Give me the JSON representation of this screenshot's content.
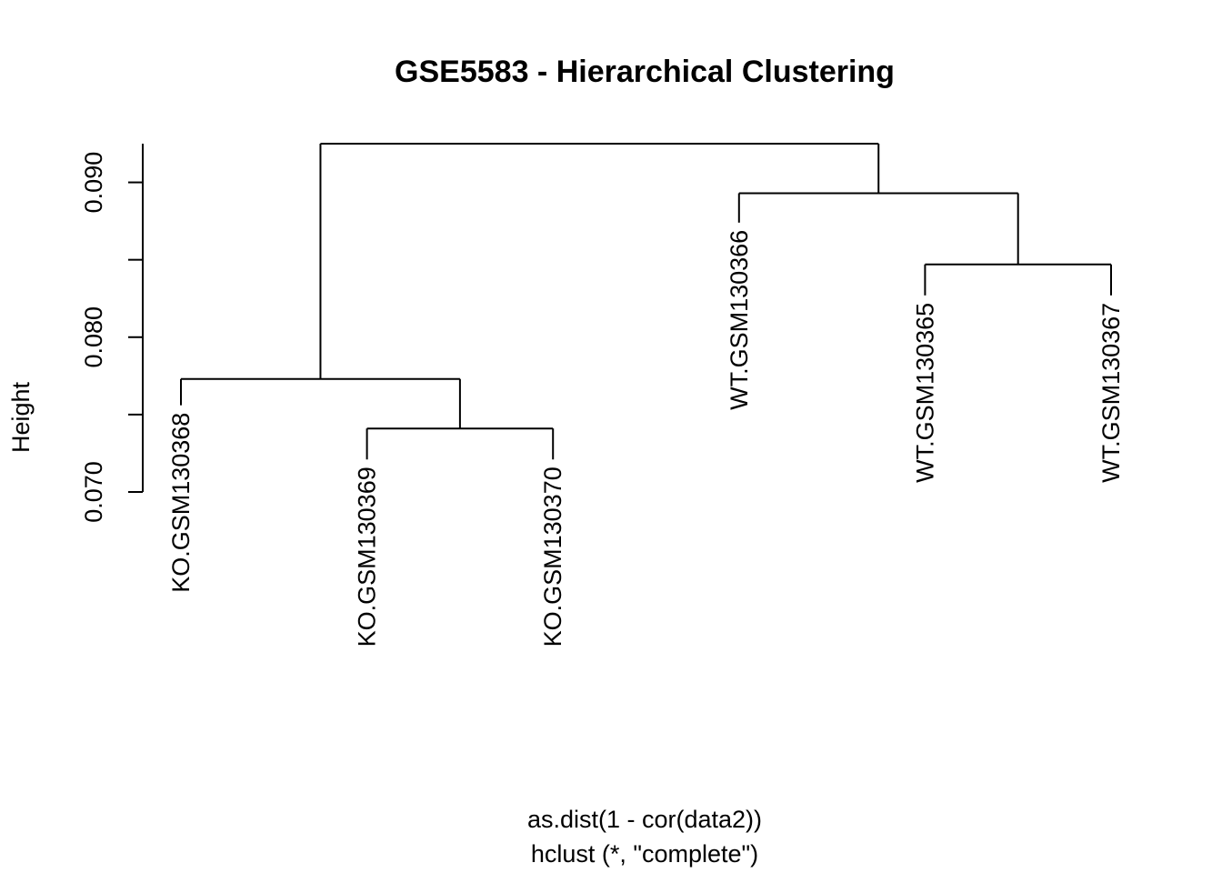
{
  "chart_data": {
    "type": "dendrogram",
    "title": "GSE5583 - Hierarchical Clustering",
    "ylabel": "Height",
    "xlabel_lines": [
      "as.dist(1 - cor(data2))",
      "hclust (*, \"complete\")"
    ],
    "ylim": [
      0.07,
      0.0925
    ],
    "y_ticks": [
      0.07,
      0.075,
      0.08,
      0.085,
      0.09
    ],
    "y_tick_labels": [
      "0.070",
      "",
      "0.080",
      "",
      "0.090"
    ],
    "leaves": [
      {
        "label": "KO.GSM130368",
        "height": 0.0756
      },
      {
        "label": "KO.GSM130369",
        "height": 0.0721
      },
      {
        "label": "KO.GSM130370",
        "height": 0.0721
      },
      {
        "label": "WT.GSM130366",
        "height": 0.0874
      },
      {
        "label": "WT.GSM130365",
        "height": 0.0827
      },
      {
        "label": "WT.GSM130367",
        "height": 0.0827
      }
    ],
    "merges": [
      {
        "left": "leaf:1",
        "right": "leaf:2",
        "height": 0.0741
      },
      {
        "left": "leaf:4",
        "right": "leaf:5",
        "height": 0.0847
      },
      {
        "left": "leaf:0",
        "right": "node:0",
        "height": 0.0773
      },
      {
        "left": "leaf:3",
        "right": "node:1",
        "height": 0.0893
      },
      {
        "left": "node:2",
        "right": "node:3",
        "height": 0.0925
      }
    ]
  }
}
